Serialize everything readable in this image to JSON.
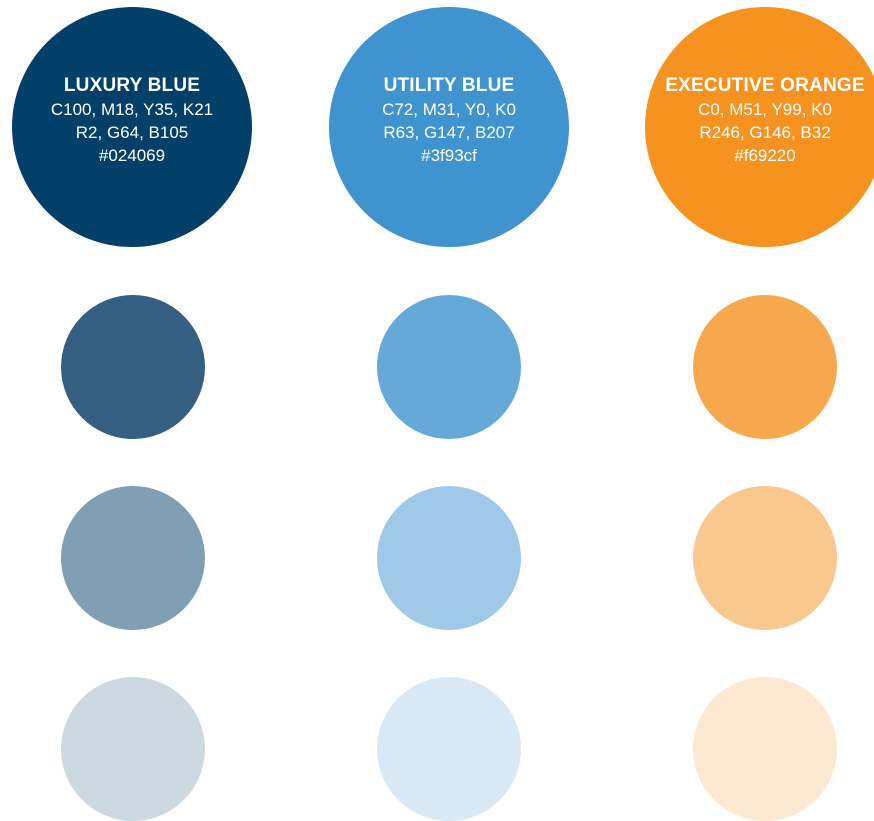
{
  "swatches": [
    {
      "name": "LUXURY BLUE",
      "cmyk": "C100, M18, Y35, K21",
      "rgb": "R2, G64, B105",
      "hex": "#024069",
      "color": "#024069",
      "tints": [
        "#355f82",
        "#809fb4",
        "#ccd9e1"
      ]
    },
    {
      "name": "UTILITY BLUE",
      "cmyk": "C72, M31, Y0, K0",
      "rgb": "R63, G147, B207",
      "hex": "#3f93cf",
      "color": "#3f93cf",
      "tints": [
        "#65a9d9",
        "#a0c8e7",
        "#d8e8f5"
      ]
    },
    {
      "name": "EXECUTIVE ORANGE",
      "cmyk": "C0, M51, Y99, K0",
      "rgb": "R246, G146, B32",
      "hex": "#f69220",
      "color": "#f69220",
      "tints": [
        "#f7a84f",
        "#f9c88f",
        "#fde9d2"
      ]
    }
  ]
}
